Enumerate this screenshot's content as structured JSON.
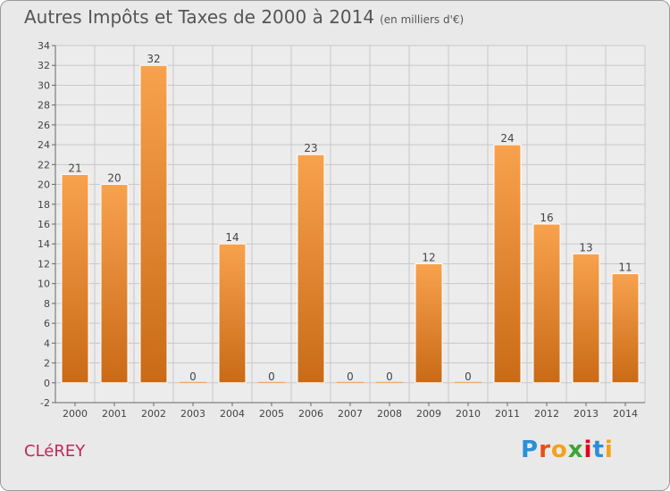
{
  "title": "Autres Impôts et Taxes de 2000 à 2014",
  "subtitle": "(en milliers d'€)",
  "commune": "CLéREY",
  "logo": {
    "letters": [
      "P",
      "r",
      "o",
      "x",
      "i",
      "t",
      "i"
    ],
    "colors": [
      "#2b8fd6",
      "#e94e1b",
      "#f4a11b",
      "#3aa635",
      "#e2001a",
      "#2b8fd6",
      "#f4a11b"
    ]
  },
  "colors": {
    "bar_top": "#f8a24e",
    "bar_bottom": "#c96a16",
    "grid": "#c8c8c8",
    "axis": "#666666"
  },
  "chart_data": {
    "type": "bar",
    "title": "Autres Impôts et Taxes de 2000 à 2014",
    "categories": [
      "2000",
      "2001",
      "2002",
      "2003",
      "2004",
      "2005",
      "2006",
      "2007",
      "2008",
      "2009",
      "2010",
      "2011",
      "2012",
      "2013",
      "2014"
    ],
    "values": [
      21,
      20,
      32,
      0,
      14,
      0,
      23,
      0,
      0,
      12,
      0,
      24,
      16,
      13,
      11
    ],
    "ylim": [
      -2,
      34
    ],
    "yticks": [
      -2,
      0,
      2,
      4,
      6,
      8,
      10,
      12,
      14,
      16,
      18,
      20,
      22,
      24,
      26,
      28,
      30,
      32,
      34
    ],
    "grid": true
  }
}
